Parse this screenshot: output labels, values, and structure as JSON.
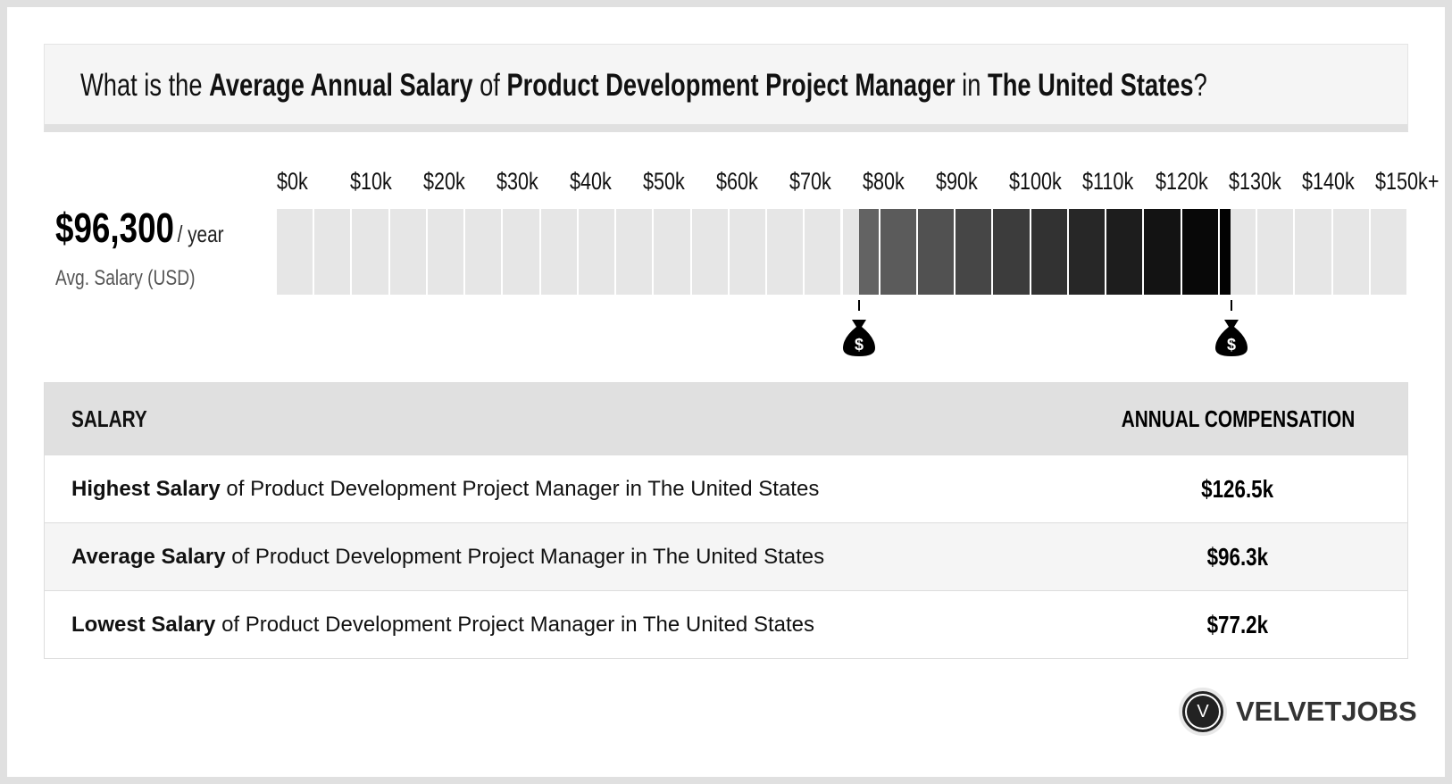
{
  "header": {
    "p1": "What is the ",
    "b1": "Average Annual Salary",
    "p2": " of ",
    "b2": "Product Development Project Manager",
    "p3": " in ",
    "b3": "The United States",
    "p4": "?"
  },
  "summary": {
    "amount": "$96,300",
    "period": "/ year",
    "label": "Avg. Salary (USD)"
  },
  "chart_data": {
    "type": "range-bar",
    "xlim": [
      0,
      150
    ],
    "unit": "$k",
    "tick_labels": [
      "$0k",
      "$10k",
      "$20k",
      "$30k",
      "$40k",
      "$50k",
      "$60k",
      "$70k",
      "$80k",
      "$90k",
      "$100k",
      "$110k",
      "$120k",
      "$130k",
      "$140k",
      "$150k+"
    ],
    "range": {
      "low": 77.2,
      "high": 126.5,
      "average": 96.3
    },
    "cell_step": 5,
    "colors": {
      "empty": "#e6e6e6",
      "fill_start": "#666666",
      "fill_end": "#000000"
    },
    "markers": [
      {
        "value": 77.2,
        "icon": "money-bag-icon"
      },
      {
        "value": 126.5,
        "icon": "money-bag-icon"
      }
    ]
  },
  "table": {
    "headers": [
      "SALARY",
      "ANNUAL COMPENSATION"
    ],
    "rows": [
      {
        "bold": "Highest Salary",
        "text": " of Product Development Project Manager in The United States",
        "value": "$126.5k"
      },
      {
        "bold": "Average Salary",
        "text": " of Product Development Project Manager in The United States",
        "value": "$96.3k"
      },
      {
        "bold": "Lowest Salary",
        "text": " of Product Development Project Manager in The United States",
        "value": "$77.2k"
      }
    ]
  },
  "logo": {
    "letter": "V",
    "name": "VELVETJOBS"
  }
}
